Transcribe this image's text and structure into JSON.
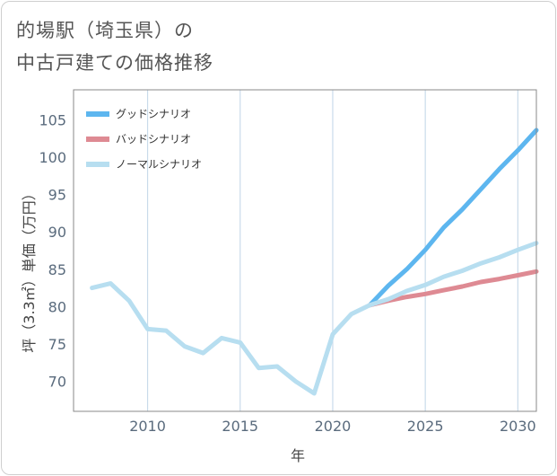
{
  "title_line1": "的場駅（埼玉県）の",
  "title_line2": "中古戸建ての価格推移",
  "chart_data": {
    "type": "line",
    "title": "的場駅（埼玉県）の中古戸建ての価格推移",
    "xlabel": "年",
    "ylabel": "坪（3.3㎡）単価（万円）",
    "xlim": [
      2006,
      2031
    ],
    "ylim": [
      66,
      109
    ],
    "xticks": [
      2010,
      2015,
      2020,
      2025,
      2030
    ],
    "yticks": [
      70,
      75,
      80,
      85,
      90,
      95,
      100,
      105
    ],
    "xgrid": [
      2010,
      2015,
      2020,
      2025,
      2030
    ],
    "legend_position": "top-left",
    "series": [
      {
        "name": "グッドシナリオ",
        "color": "#5db6ef",
        "x": [
          2022,
          2023,
          2024,
          2025,
          2026,
          2027,
          2028,
          2029,
          2030,
          2031
        ],
        "y": [
          80.2,
          82.8,
          85.0,
          87.6,
          90.6,
          93.0,
          95.7,
          98.4,
          100.9,
          103.6
        ]
      },
      {
        "name": "バッドシナリオ",
        "color": "#de8a93",
        "x": [
          2022,
          2023,
          2024,
          2025,
          2026,
          2027,
          2028,
          2029,
          2030,
          2031
        ],
        "y": [
          80.2,
          80.8,
          81.3,
          81.7,
          82.2,
          82.7,
          83.3,
          83.7,
          84.2,
          84.7
        ]
      },
      {
        "name": "ノーマルシナリオ",
        "color": "#b7def0",
        "x": [
          2007,
          2008,
          2009,
          2010,
          2011,
          2012,
          2013,
          2014,
          2015,
          2016,
          2017,
          2018,
          2019,
          2020,
          2021,
          2022,
          2023,
          2024,
          2025,
          2026,
          2027,
          2028,
          2029,
          2030,
          2031
        ],
        "y": [
          82.5,
          83.1,
          80.8,
          77.0,
          76.8,
          74.7,
          73.8,
          75.8,
          75.2,
          71.8,
          72.0,
          70.0,
          68.4,
          76.3,
          79.0,
          80.2,
          81.0,
          82.1,
          82.9,
          84.0,
          84.8,
          85.8,
          86.6,
          87.6,
          88.5
        ]
      }
    ]
  }
}
